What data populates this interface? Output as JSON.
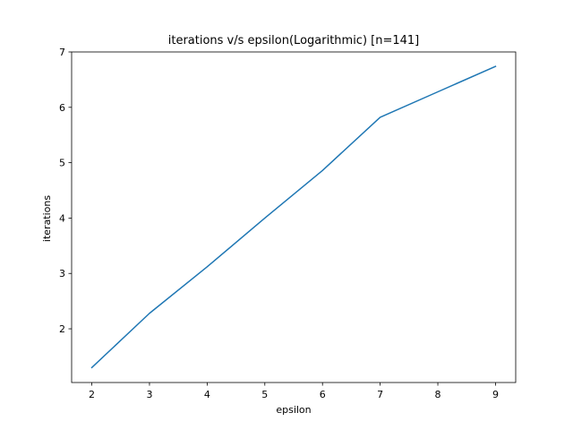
{
  "chart_data": {
    "type": "line",
    "title": "iterations v/s epsilon(Logarithmic) [n=141]",
    "xlabel": "epsilon",
    "ylabel": "iterations",
    "x": [
      2,
      3,
      4,
      5,
      6,
      7,
      8,
      9
    ],
    "series": [
      {
        "values": [
          1.3,
          2.28,
          3.12,
          4.0,
          4.86,
          5.82,
          6.28,
          6.74
        ],
        "color": "#1f77b4"
      }
    ],
    "xlim": [
      1.65,
      9.35
    ],
    "ylim": [
      1.03,
      7.0
    ],
    "xticks": [
      2,
      3,
      4,
      5,
      6,
      7,
      8,
      9
    ],
    "yticks": [
      2,
      3,
      4,
      5,
      6,
      7
    ],
    "grid": false,
    "legend": "none"
  }
}
